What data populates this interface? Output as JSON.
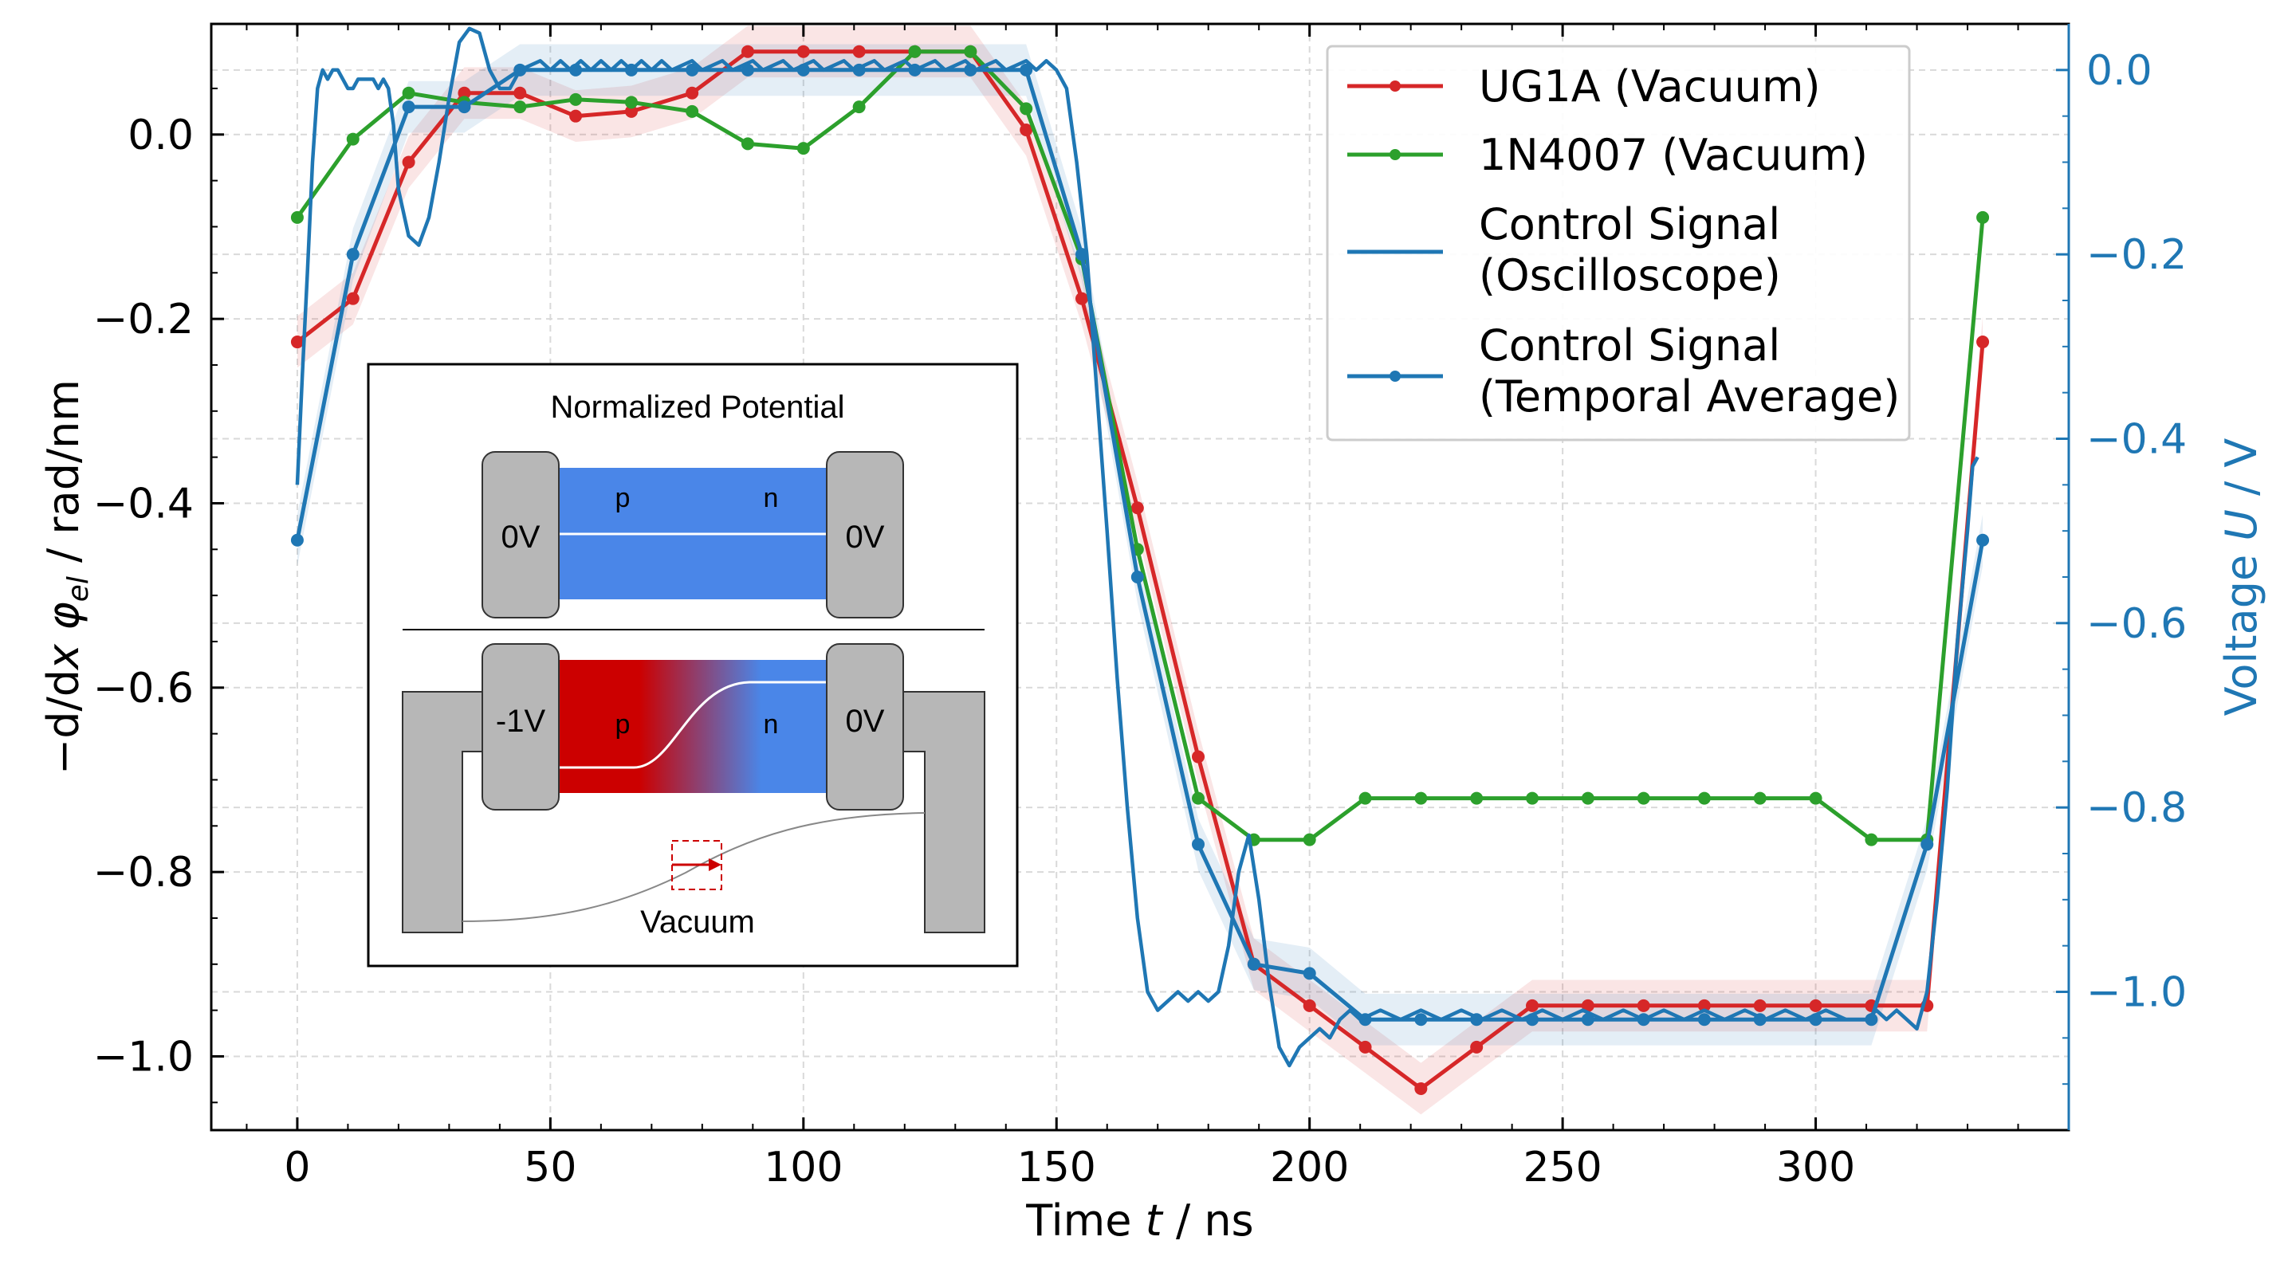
{
  "chart_data": {
    "type": "line",
    "x": [
      0,
      11,
      22,
      33,
      44,
      55,
      66,
      78,
      89,
      100,
      111,
      122,
      133,
      144,
      155,
      166,
      178,
      189,
      200,
      211,
      222,
      233,
      244,
      255,
      266,
      278,
      289,
      300,
      311,
      322,
      333
    ],
    "xlabel_parts": [
      "Time ",
      "t",
      " / ns"
    ],
    "ylabel_left_parts": [
      "−d/d",
      "x",
      " ",
      "φ",
      "el",
      " / rad/nm"
    ],
    "ylabel_right_parts": [
      "Voltage ",
      "U",
      " / V"
    ],
    "xlim": [
      -17,
      350
    ],
    "ylim_left": [
      -1.08,
      0.12
    ],
    "ylim_right": [
      -1.15,
      0.05
    ],
    "xticks": [
      0,
      50,
      100,
      150,
      200,
      250,
      300
    ],
    "yticks_left": [
      0.0,
      -0.2,
      -0.4,
      -0.6,
      -0.8,
      -1.0
    ],
    "yticks_right": [
      0.0,
      -0.2,
      -0.4,
      -0.6,
      -0.8,
      -1.0
    ],
    "xtick_labels": [
      "0",
      "50",
      "100",
      "150",
      "200",
      "250",
      "300"
    ],
    "ytick_labels_left": [
      "0.0",
      "−0.2",
      "−0.4",
      "−0.6",
      "−0.8",
      "−1.0"
    ],
    "ytick_labels_right": [
      "0.0",
      "−0.2",
      "−0.4",
      "−0.6",
      "−0.8",
      "−1.0"
    ],
    "grid": true,
    "legend_position": "top-right",
    "series": [
      {
        "name": "UG1A (Vacuum)",
        "axis": "left",
        "color": "#d62728",
        "markers": true,
        "band": true,
        "values": [
          -0.225,
          -0.178,
          -0.03,
          0.045,
          0.045,
          0.02,
          0.025,
          0.045,
          0.09,
          0.09,
          0.09,
          0.09,
          0.09,
          0.005,
          -0.178,
          -0.405,
          -0.675,
          -0.9,
          -0.945,
          -0.99,
          -1.035,
          -0.99,
          -0.945,
          -0.945,
          -0.945,
          -0.945,
          -0.945,
          -0.945,
          -0.945,
          -0.945,
          -0.225
        ]
      },
      {
        "name": "1N4007 (Vacuum)",
        "axis": "left",
        "color": "#2ca02c",
        "markers": true,
        "band": false,
        "values": [
          -0.09,
          -0.005,
          0.045,
          0.035,
          0.03,
          0.038,
          0.035,
          0.025,
          -0.01,
          -0.015,
          0.03,
          0.09,
          0.09,
          0.028,
          -0.135,
          -0.45,
          -0.72,
          -0.765,
          -0.765,
          -0.72,
          -0.72,
          -0.72,
          -0.72,
          -0.72,
          -0.72,
          -0.72,
          -0.72,
          -0.72,
          -0.765,
          -0.765,
          -0.09
        ]
      },
      {
        "name": "Control Signal (Temporal Average)",
        "axis": "right",
        "color": "#1f77b4",
        "markers": true,
        "band": true,
        "values": [
          -0.51,
          -0.2,
          -0.04,
          -0.04,
          0.0,
          0.0,
          0.0,
          0.0,
          0.0,
          0.0,
          0.0,
          0.0,
          0.0,
          0.0,
          -0.2,
          -0.55,
          -0.84,
          -0.97,
          -0.98,
          -1.03,
          -1.03,
          -1.03,
          -1.03,
          -1.03,
          -1.03,
          -1.03,
          -1.03,
          -1.03,
          -1.03,
          -0.84,
          -0.51
        ]
      },
      {
        "name": "Control Signal (Oscilloscope)",
        "axis": "right",
        "color": "#1f77b4",
        "markers": false,
        "band": false,
        "points": [
          [
            0,
            -0.45
          ],
          [
            1,
            -0.33
          ],
          [
            2,
            -0.22
          ],
          [
            3,
            -0.1
          ],
          [
            4,
            -0.02
          ],
          [
            5,
            0.0
          ],
          [
            6,
            -0.01
          ],
          [
            7,
            0.0
          ],
          [
            8,
            0.0
          ],
          [
            9,
            -0.01
          ],
          [
            10,
            -0.02
          ],
          [
            11,
            -0.02
          ],
          [
            12,
            -0.01
          ],
          [
            13,
            -0.01
          ],
          [
            14,
            -0.01
          ],
          [
            15,
            -0.01
          ],
          [
            16,
            -0.02
          ],
          [
            17,
            -0.01
          ],
          [
            18,
            -0.02
          ],
          [
            19,
            -0.06
          ],
          [
            20,
            -0.13
          ],
          [
            22,
            -0.18
          ],
          [
            24,
            -0.19
          ],
          [
            26,
            -0.16
          ],
          [
            28,
            -0.1
          ],
          [
            30,
            -0.03
          ],
          [
            32,
            0.03
          ],
          [
            34,
            0.045
          ],
          [
            36,
            0.04
          ],
          [
            38,
            0.0
          ],
          [
            40,
            -0.02
          ],
          [
            42,
            -0.02
          ],
          [
            44,
            0.0
          ],
          [
            48,
            0.01
          ],
          [
            50,
            0.0
          ],
          [
            52,
            0.01
          ],
          [
            54,
            0.0
          ],
          [
            56,
            0.01
          ],
          [
            58,
            0.0
          ],
          [
            60,
            0.01
          ],
          [
            62,
            0.0
          ],
          [
            64,
            0.01
          ],
          [
            66,
            0.0
          ],
          [
            68,
            0.01
          ],
          [
            70,
            0.0
          ],
          [
            72,
            0.01
          ],
          [
            74,
            0.0
          ],
          [
            78,
            0.01
          ],
          [
            80,
            0.0
          ],
          [
            84,
            0.01
          ],
          [
            86,
            0.0
          ],
          [
            90,
            0.01
          ],
          [
            92,
            0.0
          ],
          [
            96,
            0.01
          ],
          [
            98,
            0.0
          ],
          [
            102,
            0.01
          ],
          [
            104,
            0.0
          ],
          [
            108,
            0.01
          ],
          [
            110,
            0.0
          ],
          [
            114,
            0.01
          ],
          [
            116,
            0.0
          ],
          [
            120,
            0.01
          ],
          [
            122,
            0.0
          ],
          [
            126,
            0.01
          ],
          [
            128,
            0.0
          ],
          [
            132,
            0.01
          ],
          [
            134,
            0.0
          ],
          [
            138,
            0.01
          ],
          [
            140,
            0.0
          ],
          [
            144,
            0.01
          ],
          [
            146,
            0.0
          ],
          [
            148,
            0.01
          ],
          [
            150,
            0.0
          ],
          [
            152,
            -0.02
          ],
          [
            154,
            -0.1
          ],
          [
            156,
            -0.2
          ],
          [
            158,
            -0.35
          ],
          [
            160,
            -0.5
          ],
          [
            162,
            -0.66
          ],
          [
            164,
            -0.8
          ],
          [
            166,
            -0.92
          ],
          [
            168,
            -1.0
          ],
          [
            170,
            -1.02
          ],
          [
            172,
            -1.01
          ],
          [
            174,
            -1.0
          ],
          [
            176,
            -1.01
          ],
          [
            178,
            -1.0
          ],
          [
            180,
            -1.01
          ],
          [
            182,
            -1.0
          ],
          [
            184,
            -0.95
          ],
          [
            186,
            -0.87
          ],
          [
            188,
            -0.83
          ],
          [
            190,
            -0.9
          ],
          [
            192,
            -0.99
          ],
          [
            194,
            -1.06
          ],
          [
            196,
            -1.08
          ],
          [
            198,
            -1.06
          ],
          [
            200,
            -1.05
          ],
          [
            202,
            -1.04
          ],
          [
            204,
            -1.05
          ],
          [
            206,
            -1.03
          ],
          [
            208,
            -1.02
          ],
          [
            210,
            -1.03
          ],
          [
            214,
            -1.02
          ],
          [
            218,
            -1.03
          ],
          [
            222,
            -1.02
          ],
          [
            226,
            -1.03
          ],
          [
            230,
            -1.02
          ],
          [
            234,
            -1.03
          ],
          [
            238,
            -1.02
          ],
          [
            242,
            -1.03
          ],
          [
            246,
            -1.02
          ],
          [
            250,
            -1.03
          ],
          [
            254,
            -1.02
          ],
          [
            258,
            -1.03
          ],
          [
            262,
            -1.02
          ],
          [
            266,
            -1.03
          ],
          [
            270,
            -1.02
          ],
          [
            274,
            -1.03
          ],
          [
            278,
            -1.02
          ],
          [
            282,
            -1.03
          ],
          [
            286,
            -1.02
          ],
          [
            290,
            -1.03
          ],
          [
            294,
            -1.02
          ],
          [
            298,
            -1.03
          ],
          [
            302,
            -1.02
          ],
          [
            306,
            -1.03
          ],
          [
            310,
            -1.03
          ],
          [
            312,
            -1.02
          ],
          [
            314,
            -1.03
          ],
          [
            316,
            -1.02
          ],
          [
            318,
            -1.03
          ],
          [
            320,
            -1.04
          ],
          [
            322,
            -1.0
          ],
          [
            324,
            -0.9
          ],
          [
            326,
            -0.78
          ],
          [
            328,
            -0.62
          ],
          [
            330,
            -0.5
          ],
          [
            331,
            -0.43
          ],
          [
            332,
            -0.42
          ]
        ]
      }
    ]
  },
  "legend": {
    "items": [
      {
        "lines": [
          "UG1A (Vacuum)"
        ],
        "color": "#d62728",
        "marker": true
      },
      {
        "lines": [
          "1N4007 (Vacuum)"
        ],
        "color": "#2ca02c",
        "marker": true
      },
      {
        "lines": [
          "Control Signal",
          "(Oscilloscope)"
        ],
        "color": "#1f77b4",
        "marker": false
      },
      {
        "lines": [
          "Control Signal",
          "(Temporal Average)"
        ],
        "color": "#1f77b4",
        "marker": true
      }
    ]
  },
  "inset": {
    "title": "Normalized Potential",
    "top_left_terminal": "0V",
    "top_right_terminal": "0V",
    "top_p": "p",
    "top_n": "n",
    "bottom_left_terminal": "-1V",
    "bottom_right_terminal": "0V",
    "bottom_p": "p",
    "bottom_n": "n",
    "vacuum_label": "Vacuum",
    "colors": {
      "p_region": "#cc0000",
      "n_region": "#4a86e8",
      "electrode": "#b7b7b7",
      "arrow": "#cc0000"
    }
  }
}
